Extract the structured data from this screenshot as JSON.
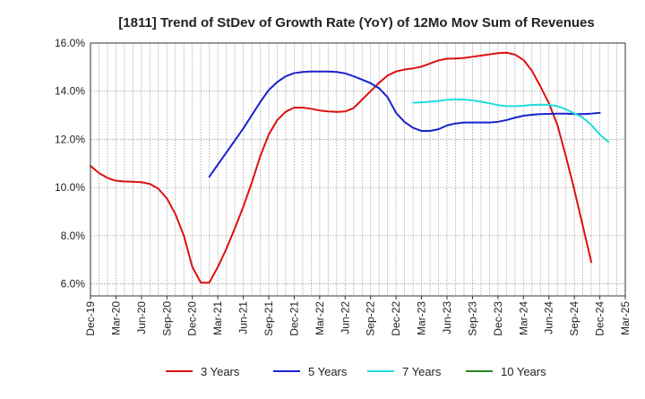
{
  "chart_data": {
    "type": "line",
    "title": "[1811]  Trend of StDev of Growth Rate (YoY) of 12Mo Mov Sum of Revenues",
    "xlabel": "",
    "ylabel": "",
    "ylim": [
      5.5,
      16.0
    ],
    "yticks": [
      6.0,
      8.0,
      10.0,
      12.0,
      14.0,
      16.0
    ],
    "ytick_labels": [
      "6.0%",
      "8.0%",
      "10.0%",
      "12.0%",
      "14.0%",
      "16.0%"
    ],
    "x_start_month": "2019-12",
    "x_end_month": "2025-03",
    "xtick_labels": [
      "Dec-19",
      "Mar-20",
      "Jun-20",
      "Sep-20",
      "Dec-20",
      "Mar-21",
      "Jun-21",
      "Sep-21",
      "Dec-21",
      "Mar-22",
      "Jun-22",
      "Sep-22",
      "Dec-22",
      "Mar-23",
      "Jun-23",
      "Sep-23",
      "Dec-23",
      "Mar-24",
      "Jun-24",
      "Sep-24",
      "Dec-24",
      "Mar-25"
    ],
    "grid": true,
    "legend_position": "bottom",
    "series": [
      {
        "name": "3 Years",
        "color": "#dd1111",
        "start_month": "2019-12",
        "values": [
          10.9,
          10.6,
          10.4,
          10.28,
          10.25,
          10.24,
          10.22,
          10.15,
          9.95,
          9.55,
          8.9,
          8.0,
          6.7,
          6.05,
          6.05,
          6.7,
          7.45,
          8.3,
          9.2,
          10.2,
          11.3,
          12.2,
          12.8,
          13.15,
          13.32,
          13.32,
          13.27,
          13.2,
          13.16,
          13.14,
          13.16,
          13.3,
          13.65,
          14.0,
          14.35,
          14.65,
          14.82,
          14.9,
          14.95,
          15.02,
          15.15,
          15.28,
          15.35,
          15.36,
          15.38,
          15.43,
          15.48,
          15.53,
          15.58,
          15.6,
          15.52,
          15.3,
          14.85,
          14.2,
          13.5,
          12.6,
          11.3,
          9.9,
          8.4,
          6.9
        ]
      },
      {
        "name": "5 Years",
        "color": "#1a22cc",
        "start_month": "2021-02",
        "values": [
          10.45,
          10.95,
          11.45,
          11.95,
          12.45,
          13.0,
          13.55,
          14.05,
          14.38,
          14.62,
          14.75,
          14.8,
          14.82,
          14.82,
          14.82,
          14.8,
          14.74,
          14.62,
          14.48,
          14.33,
          14.12,
          13.75,
          13.1,
          12.72,
          12.48,
          12.35,
          12.35,
          12.42,
          12.58,
          12.66,
          12.7,
          12.7,
          12.7,
          12.7,
          12.73,
          12.8,
          12.9,
          12.98,
          13.02,
          13.05,
          13.06,
          13.07,
          13.07,
          13.05,
          13.05,
          13.07,
          13.1
        ]
      },
      {
        "name": "7 Years",
        "color": "#22dddd",
        "start_month": "2023-02",
        "values": [
          13.52,
          13.54,
          13.56,
          13.6,
          13.64,
          13.66,
          13.65,
          13.62,
          13.56,
          13.5,
          13.42,
          13.38,
          13.38,
          13.4,
          13.43,
          13.44,
          13.43,
          13.38,
          13.25,
          13.08,
          12.9,
          12.6,
          12.2,
          11.9
        ]
      },
      {
        "name": "10 Years",
        "color": "#228822",
        "start_month": "2024-12",
        "values": []
      }
    ]
  }
}
